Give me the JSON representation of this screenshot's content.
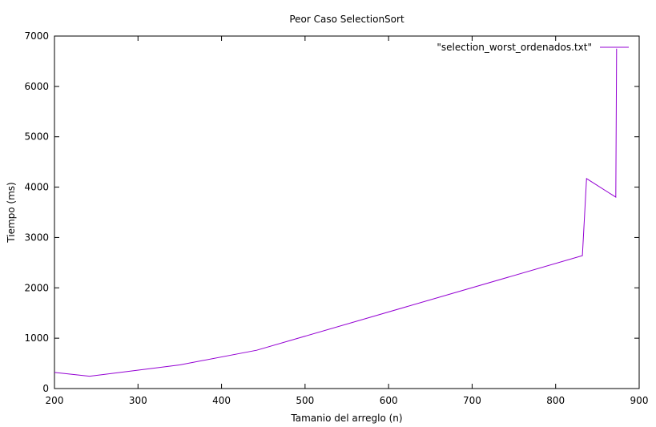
{
  "chart_data": {
    "type": "line",
    "title": "Peor Caso SelectionSort",
    "xlabel": "Tamanio del arreglo (n)",
    "ylabel": "Tiempo (ms)",
    "xlim": [
      200,
      900
    ],
    "ylim": [
      0,
      7000
    ],
    "xticks": [
      200,
      300,
      400,
      500,
      600,
      700,
      800,
      900
    ],
    "yticks": [
      0,
      1000,
      2000,
      3000,
      4000,
      5000,
      6000,
      7000
    ],
    "grid": false,
    "legend_position": "top-right",
    "series": [
      {
        "name": "\"selection_worst_ordenados.txt\"",
        "color": "#9400d3",
        "x": [
          200,
          242,
          350,
          442,
          832,
          837,
          872,
          873
        ],
        "y": [
          320,
          245,
          470,
          760,
          2640,
          4170,
          3800,
          6750
        ]
      }
    ]
  }
}
